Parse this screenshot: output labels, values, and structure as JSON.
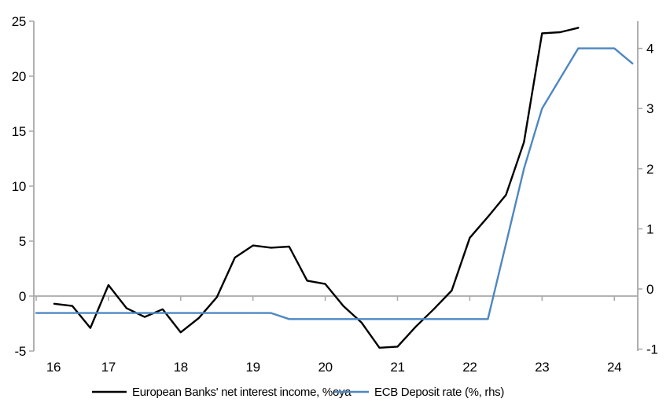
{
  "chart_data": {
    "type": "line",
    "title": "",
    "x_axis": {
      "ticks": [
        16,
        17,
        18,
        19,
        20,
        21,
        22,
        23,
        24
      ],
      "range": [
        16,
        24.33
      ]
    },
    "left_y_axis": {
      "ticks": [
        25,
        20,
        15,
        10,
        5,
        0,
        -5
      ],
      "range": [
        -5,
        25
      ]
    },
    "right_y_axis": {
      "ticks": [
        4,
        3,
        2,
        1,
        0,
        -1
      ],
      "range": [
        -1.05,
        4.45
      ]
    },
    "grid": "zero-line-only",
    "legend_position": "bottom-center",
    "colors": {
      "axis_gray": "#a8a8a8",
      "black_series": "#000000",
      "blue_series": "#4e87c1"
    },
    "series": [
      {
        "name": "European Banks' net interest income, %oya",
        "axis": "left",
        "color": "#000000",
        "x": [
          16.25,
          16.5,
          16.75,
          17,
          17.25,
          17.5,
          17.75,
          18,
          18.25,
          18.5,
          18.75,
          19,
          19.25,
          19.5,
          19.75,
          20,
          20.25,
          20.5,
          20.75,
          21,
          21.25,
          21.5,
          21.75,
          22,
          22.25,
          22.5,
          22.75,
          23,
          23.25,
          23.5
        ],
        "values": [
          -0.7,
          -0.9,
          -2.9,
          1.0,
          -1.1,
          -1.9,
          -1.2,
          -3.3,
          -2.0,
          -0.1,
          3.5,
          4.6,
          4.4,
          4.5,
          1.4,
          1.1,
          -0.9,
          -2.4,
          -4.7,
          -4.6,
          -2.8,
          -1.2,
          0.5,
          5.3,
          7.2,
          9.2,
          14.0,
          23.9,
          24.0,
          24.4
        ]
      },
      {
        "name": "ECB Deposit rate (%, rhs)",
        "axis": "right",
        "color": "#4e87c1",
        "x": [
          16,
          16.25,
          16.5,
          16.75,
          17,
          17.25,
          17.5,
          17.75,
          18,
          18.25,
          18.5,
          18.75,
          19,
          19.25,
          19.5,
          19.75,
          20,
          20.25,
          20.5,
          20.75,
          21,
          21.25,
          21.5,
          21.75,
          22,
          22.25,
          22.5,
          22.75,
          23,
          23.25,
          23.5,
          23.75,
          24,
          24.25
        ],
        "values": [
          -0.4,
          -0.4,
          -0.4,
          -0.4,
          -0.4,
          -0.4,
          -0.4,
          -0.4,
          -0.4,
          -0.4,
          -0.4,
          -0.4,
          -0.4,
          -0.4,
          -0.5,
          -0.5,
          -0.5,
          -0.5,
          -0.5,
          -0.5,
          -0.5,
          -0.5,
          -0.5,
          -0.5,
          -0.5,
          -0.5,
          0.75,
          2.0,
          3.0,
          3.5,
          4.0,
          4.0,
          4.0,
          3.75
        ]
      }
    ]
  }
}
